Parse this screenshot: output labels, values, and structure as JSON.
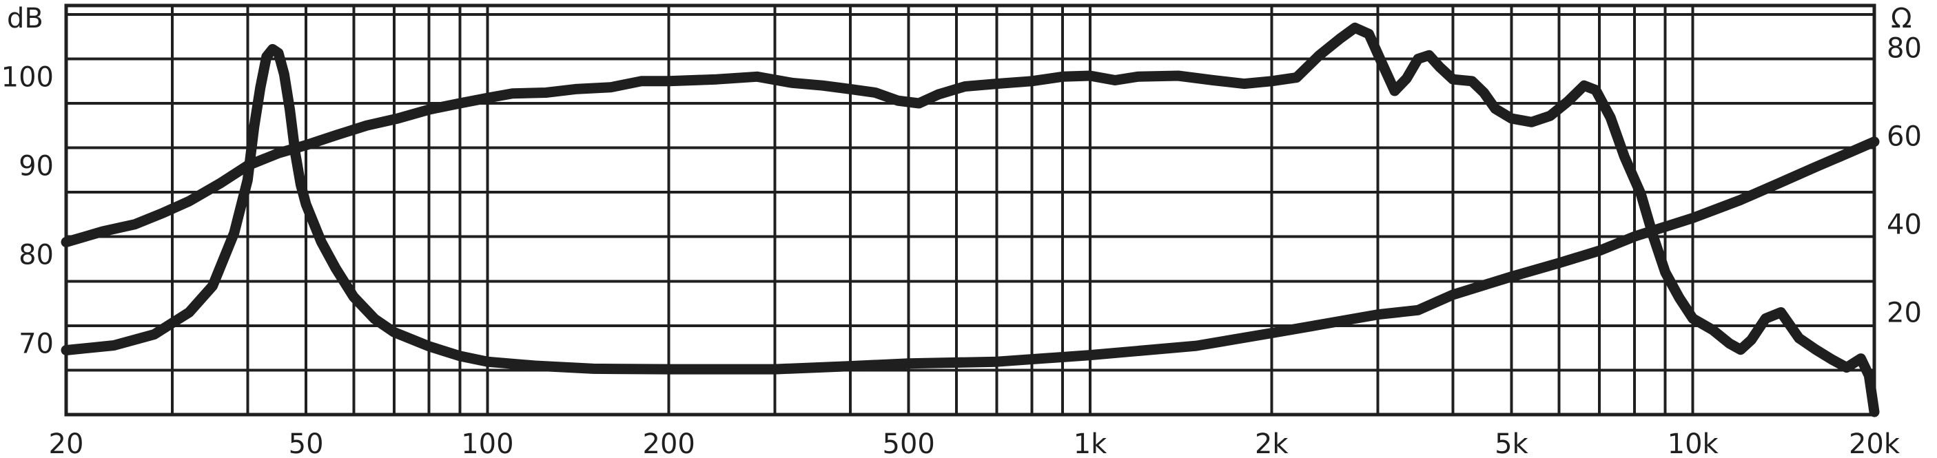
{
  "chart_data": {
    "type": "line",
    "title": "",
    "xscale": "log",
    "xlim": [
      20,
      20000
    ],
    "ylim": [
      62,
      108
    ],
    "y2lim": [
      -3.2,
      89.6
    ],
    "grid": true,
    "left_axis": {
      "unit_label": "dB",
      "ticks": [
        {
          "value": 70,
          "label": "70"
        },
        {
          "value": 80,
          "label": "80"
        },
        {
          "value": 90,
          "label": "90"
        },
        {
          "value": 100,
          "label": "100"
        }
      ]
    },
    "right_axis": {
      "unit_label": "Ω",
      "ticks": [
        {
          "value": 20,
          "label": "20"
        },
        {
          "value": 40,
          "label": "40"
        },
        {
          "value": 60,
          "label": "60"
        },
        {
          "value": 80,
          "label": "80"
        }
      ]
    },
    "x_ticks": [
      {
        "value": 20,
        "label": "20"
      },
      {
        "value": 50,
        "label": "50"
      },
      {
        "value": 100,
        "label": "100"
      },
      {
        "value": 200,
        "label": "200"
      },
      {
        "value": 500,
        "label": "500"
      },
      {
        "value": 1000,
        "label": "1k"
      },
      {
        "value": 2000,
        "label": "2k"
      },
      {
        "value": 5000,
        "label": "5k"
      },
      {
        "value": 10000,
        "label": "10k"
      },
      {
        "value": 20000,
        "label": "20k"
      }
    ],
    "x_grid": [
      20,
      30,
      40,
      50,
      60,
      70,
      80,
      90,
      100,
      200,
      300,
      400,
      500,
      600,
      700,
      800,
      900,
      1000,
      2000,
      3000,
      4000,
      5000,
      6000,
      7000,
      8000,
      9000,
      10000,
      20000
    ],
    "y_grid": [
      62,
      67,
      72,
      77,
      82,
      87,
      92,
      97,
      102,
      107
    ],
    "series": [
      {
        "axis": "left",
        "points": [
          [
            20,
            81.4
          ],
          [
            23,
            82.6
          ],
          [
            26,
            83.4
          ],
          [
            29,
            84.7
          ],
          [
            32,
            86
          ],
          [
            36,
            88
          ],
          [
            40,
            90
          ],
          [
            45,
            91.4
          ],
          [
            50,
            92.3
          ],
          [
            56,
            93.4
          ],
          [
            63,
            94.5
          ],
          [
            71,
            95.3
          ],
          [
            80,
            96.3
          ],
          [
            90,
            97
          ],
          [
            100,
            97.6
          ],
          [
            110,
            98.1
          ],
          [
            125,
            98.2
          ],
          [
            140,
            98.6
          ],
          [
            160,
            98.8
          ],
          [
            180,
            99.5
          ],
          [
            200,
            99.5
          ],
          [
            240,
            99.7
          ],
          [
            280,
            100
          ],
          [
            320,
            99.3
          ],
          [
            360,
            99
          ],
          [
            400,
            98.6
          ],
          [
            440,
            98.2
          ],
          [
            480,
            97.3
          ],
          [
            520,
            97
          ],
          [
            560,
            98
          ],
          [
            620,
            98.9
          ],
          [
            700,
            99.2
          ],
          [
            800,
            99.5
          ],
          [
            900,
            100
          ],
          [
            1000,
            100.1
          ],
          [
            1100,
            99.6
          ],
          [
            1200,
            100
          ],
          [
            1400,
            100.1
          ],
          [
            1600,
            99.6
          ],
          [
            1800,
            99.2
          ],
          [
            2000,
            99.5
          ],
          [
            2200,
            99.9
          ],
          [
            2400,
            102.4
          ],
          [
            2600,
            104.3
          ],
          [
            2750,
            105.5
          ],
          [
            2900,
            104.8
          ],
          [
            3050,
            101.5
          ],
          [
            3200,
            98.4
          ],
          [
            3350,
            99.8
          ],
          [
            3500,
            102
          ],
          [
            3650,
            102.4
          ],
          [
            3800,
            101.1
          ],
          [
            4000,
            99.7
          ],
          [
            4300,
            99.5
          ],
          [
            4500,
            98.2
          ],
          [
            4700,
            96.4
          ],
          [
            5000,
            95.3
          ],
          [
            5400,
            94.9
          ],
          [
            5800,
            95.6
          ],
          [
            6200,
            97.2
          ],
          [
            6600,
            99
          ],
          [
            6900,
            98.5
          ],
          [
            7300,
            95.4
          ],
          [
            7700,
            91
          ],
          [
            8200,
            86.8
          ],
          [
            8600,
            82
          ],
          [
            9000,
            78
          ],
          [
            9500,
            75.1
          ],
          [
            10000,
            72.8
          ],
          [
            10800,
            71.5
          ],
          [
            11500,
            70
          ],
          [
            12000,
            69.3
          ],
          [
            12500,
            70.4
          ],
          [
            13200,
            72.8
          ],
          [
            14000,
            73.5
          ],
          [
            15000,
            70.6
          ],
          [
            16000,
            69.3
          ],
          [
            17000,
            68.2
          ],
          [
            18000,
            67.3
          ],
          [
            19000,
            68.3
          ],
          [
            19600,
            66.4
          ],
          [
            20000,
            62.3
          ]
        ]
      },
      {
        "axis": "right",
        "points": [
          [
            20,
            11.4
          ],
          [
            24,
            12.5
          ],
          [
            28,
            15
          ],
          [
            32,
            20
          ],
          [
            35,
            26
          ],
          [
            38,
            38
          ],
          [
            40,
            50
          ],
          [
            41,
            62
          ],
          [
            42,
            71
          ],
          [
            43,
            78
          ],
          [
            44,
            79.7
          ],
          [
            45,
            78.8
          ],
          [
            46,
            74
          ],
          [
            47,
            66
          ],
          [
            48,
            56
          ],
          [
            49,
            49
          ],
          [
            50,
            44.5
          ],
          [
            53,
            36
          ],
          [
            56,
            30
          ],
          [
            60,
            23.5
          ],
          [
            65,
            18.5
          ],
          [
            70,
            15.5
          ],
          [
            80,
            12.3
          ],
          [
            90,
            10.1
          ],
          [
            100,
            8.8
          ],
          [
            120,
            7.9
          ],
          [
            150,
            7.2
          ],
          [
            200,
            7.1
          ],
          [
            300,
            7.1
          ],
          [
            400,
            7.8
          ],
          [
            500,
            8.4
          ],
          [
            700,
            8.8
          ],
          [
            1000,
            10.3
          ],
          [
            1500,
            12.4
          ],
          [
            2000,
            15.3
          ],
          [
            2500,
            17.6
          ],
          [
            3000,
            19.5
          ],
          [
            3500,
            20.5
          ],
          [
            4000,
            24
          ],
          [
            5000,
            28.1
          ],
          [
            6000,
            31.2
          ],
          [
            7000,
            34
          ],
          [
            8000,
            37.2
          ],
          [
            10000,
            41.4
          ],
          [
            12000,
            45.5
          ],
          [
            14000,
            49.5
          ],
          [
            16000,
            53
          ],
          [
            18000,
            56
          ],
          [
            20000,
            58.7
          ]
        ]
      }
    ]
  }
}
